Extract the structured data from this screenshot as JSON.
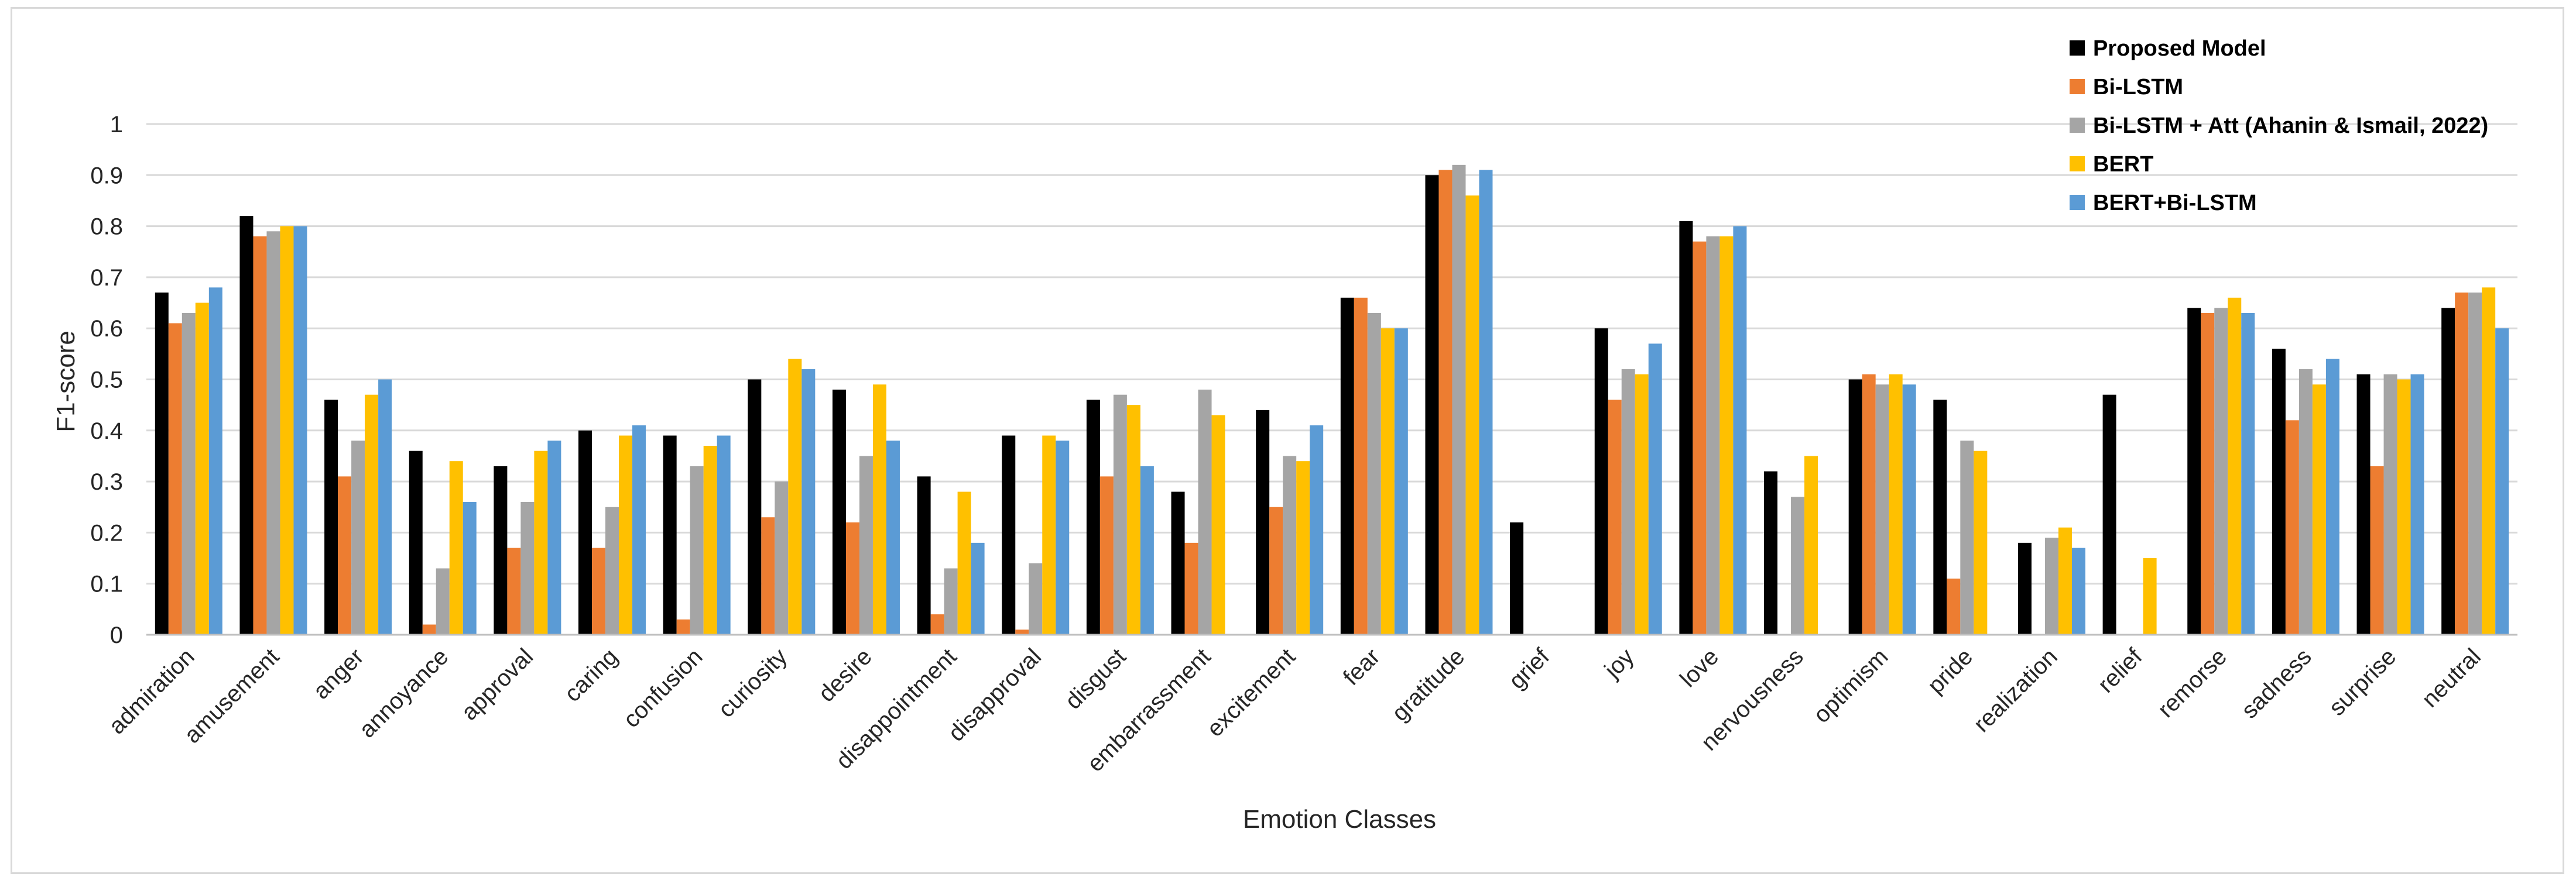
{
  "chart_data": {
    "type": "bar",
    "title": "",
    "xlabel": "Emotion Classes",
    "ylabel": "F1-score",
    "ylim": [
      0,
      1
    ],
    "yticks": [
      "0",
      "0.1",
      "0.2",
      "0.3",
      "0.4",
      "0.5",
      "0.6",
      "0.7",
      "0.8",
      "0.9",
      "1"
    ],
    "grid": true,
    "legend_position": "top-right",
    "categories": [
      "admiration",
      "amusement",
      "anger",
      "annoyance",
      "approval",
      "caring",
      "confusion",
      "curiosity",
      "desire",
      "disappointment",
      "disapproval",
      "disgust",
      "embarrassment",
      "excitement",
      "fear",
      "gratitude",
      "grief",
      "joy",
      "love",
      "nervousness",
      "optimism",
      "pride",
      "realization",
      "relief",
      "remorse",
      "sadness",
      "surprise",
      "neutral"
    ],
    "series": [
      {
        "name": "Proposed Model",
        "color": "#000000",
        "values": [
          0.67,
          0.82,
          0.46,
          0.36,
          0.33,
          0.4,
          0.39,
          0.5,
          0.48,
          0.31,
          0.39,
          0.46,
          0.28,
          0.44,
          0.66,
          0.9,
          0.22,
          0.6,
          0.81,
          0.32,
          0.5,
          0.46,
          0.18,
          0.47,
          0.64,
          0.56,
          0.51,
          0.64
        ]
      },
      {
        "name": "Bi-LSTM",
        "color": "#ed7d31",
        "values": [
          0.61,
          0.78,
          0.31,
          0.02,
          0.17,
          0.17,
          0.03,
          0.23,
          0.22,
          0.04,
          0.01,
          0.31,
          0.18,
          0.25,
          0.66,
          0.91,
          0.0,
          0.46,
          0.77,
          0.0,
          0.51,
          0.11,
          0.0,
          0.0,
          0.63,
          0.42,
          0.33,
          0.67
        ]
      },
      {
        "name": "Bi-LSTM + Att (Ahanin & Ismail, 2022)",
        "color": "#a5a5a5",
        "values": [
          0.63,
          0.79,
          0.38,
          0.13,
          0.26,
          0.25,
          0.33,
          0.3,
          0.35,
          0.13,
          0.14,
          0.47,
          0.48,
          0.35,
          0.63,
          0.92,
          0.0,
          0.52,
          0.78,
          0.27,
          0.49,
          0.38,
          0.19,
          0.0,
          0.64,
          0.52,
          0.51,
          0.67
        ]
      },
      {
        "name": "BERT",
        "color": "#ffc000",
        "values": [
          0.65,
          0.8,
          0.47,
          0.34,
          0.36,
          0.39,
          0.37,
          0.54,
          0.49,
          0.28,
          0.39,
          0.45,
          0.43,
          0.34,
          0.6,
          0.86,
          0.0,
          0.51,
          0.78,
          0.35,
          0.51,
          0.36,
          0.21,
          0.15,
          0.66,
          0.49,
          0.5,
          0.68
        ]
      },
      {
        "name": "BERT+Bi-LSTM",
        "color": "#5b9bd5",
        "values": [
          0.68,
          0.8,
          0.5,
          0.26,
          0.38,
          0.41,
          0.39,
          0.52,
          0.38,
          0.18,
          0.38,
          0.33,
          0.0,
          0.41,
          0.6,
          0.91,
          0.0,
          0.57,
          0.8,
          0.0,
          0.49,
          0.0,
          0.17,
          0.0,
          0.63,
          0.54,
          0.51,
          0.6
        ]
      }
    ]
  }
}
